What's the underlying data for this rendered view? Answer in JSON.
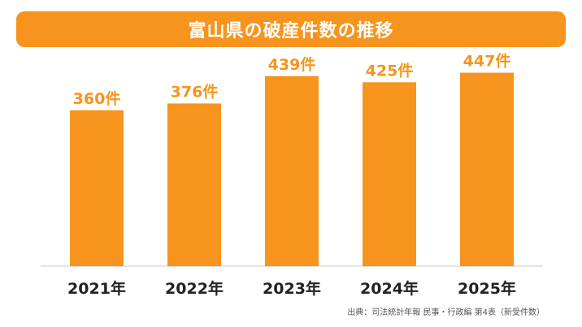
{
  "colors": {
    "accent": "#F7941D",
    "bar": "#F7941D",
    "title_text": "#FFFFFF",
    "axis": "#C8C8C8",
    "tick_text": "#222222"
  },
  "source": "出典：司法統計年報 民事・行政編 第4表（新受件数）",
  "chart_data": {
    "type": "bar",
    "title": "富山県の破産件数の推移",
    "categories": [
      "2021年",
      "2022年",
      "2023年",
      "2024年",
      "2025年"
    ],
    "values": [
      360,
      376,
      439,
      425,
      447
    ],
    "data_labels": [
      "360件",
      "376件",
      "439件",
      "425件",
      "447件"
    ],
    "ylim": [
      0,
      480
    ],
    "grid": false,
    "legend": "none",
    "xlabel": "",
    "ylabel": ""
  }
}
